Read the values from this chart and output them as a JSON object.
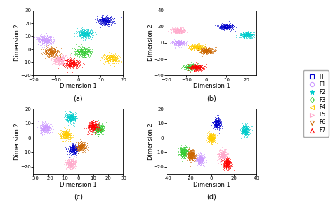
{
  "subplot_labels": [
    "(a)",
    "(b)",
    "(c)",
    "(d)"
  ],
  "class_names": [
    "H",
    "F1",
    "F2",
    "F3",
    "F4",
    "F5",
    "F6",
    "F7"
  ],
  "legend_markers": [
    "s",
    "o",
    "*",
    "d",
    "<",
    ">",
    "v",
    "^"
  ],
  "colors": [
    "#0000cc",
    "#cc99ff",
    "#00cccc",
    "#33cc33",
    "#ffcc00",
    "#ffaacc",
    "#cc6600",
    "#ff0000"
  ],
  "subplot_configs": [
    {
      "xlim": [
        -20,
        20
      ],
      "ylim": [
        -20,
        30
      ],
      "xticks": [
        -20,
        -10,
        0,
        10,
        20
      ],
      "yticks": [
        -20,
        -10,
        0,
        10,
        20,
        30
      ]
    },
    {
      "xlim": [
        -20,
        25
      ],
      "ylim": [
        -40,
        40
      ],
      "xticks": [
        -20,
        -10,
        0,
        10,
        20
      ],
      "yticks": [
        -40,
        -20,
        0,
        20,
        40
      ]
    },
    {
      "xlim": [
        -30,
        30
      ],
      "ylim": [
        -25,
        20
      ],
      "xticks": [
        -30,
        -20,
        -10,
        0,
        10,
        20,
        30
      ],
      "yticks": [
        -20,
        -10,
        0,
        10,
        20
      ]
    },
    {
      "xlim": [
        -40,
        40
      ],
      "ylim": [
        -25,
        20
      ],
      "xticks": [
        -40,
        -20,
        0,
        20,
        40
      ],
      "yticks": [
        -20,
        -10,
        0,
        10,
        20
      ]
    }
  ],
  "cluster_centers_a": [
    [
      12,
      22
    ],
    [
      -15,
      7
    ],
    [
      3,
      12
    ],
    [
      2,
      -2
    ],
    [
      15,
      -7
    ],
    [
      -8,
      -8
    ],
    [
      -12,
      -2
    ],
    [
      -3,
      -11
    ]
  ],
  "cluster_centers_b": [
    [
      10,
      20
    ],
    [
      -14,
      0
    ],
    [
      20,
      10
    ],
    [
      -8,
      -30
    ],
    [
      -5,
      -5
    ],
    [
      -14,
      15
    ],
    [
      0,
      -10
    ],
    [
      -5,
      -30
    ]
  ],
  "cluster_centers_c": [
    [
      -3,
      -8
    ],
    [
      -22,
      7
    ],
    [
      -5,
      14
    ],
    [
      14,
      6
    ],
    [
      -8,
      2
    ],
    [
      -5,
      -18
    ],
    [
      2,
      -6
    ],
    [
      10,
      8
    ]
  ],
  "cluster_centers_d": [
    [
      5,
      10
    ],
    [
      -10,
      -15
    ],
    [
      30,
      5
    ],
    [
      -25,
      -10
    ],
    [
      0,
      0
    ],
    [
      10,
      -12
    ],
    [
      -18,
      -12
    ],
    [
      14,
      -18
    ]
  ],
  "n_points": 500,
  "spread": 1.8,
  "point_size": 1
}
